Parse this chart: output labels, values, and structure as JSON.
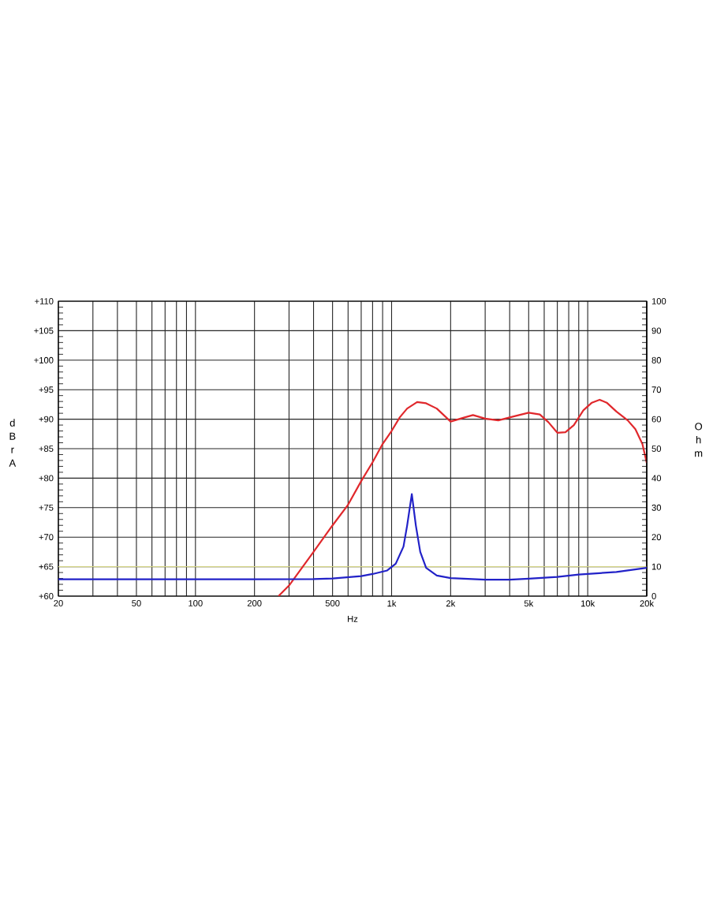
{
  "chart_data": {
    "type": "line",
    "xlabel": "Hz",
    "ylabel": "dBrA",
    "y2label": "Ohm",
    "log": "x",
    "grid": true,
    "xlim": [
      20,
      20000
    ],
    "xticks": [
      20,
      {
        "value": 30,
        "label": null
      },
      {
        "value": 40,
        "label": null
      },
      50,
      {
        "value": 60,
        "label": null
      },
      {
        "value": 70,
        "label": null
      },
      {
        "value": 80,
        "label": null
      },
      {
        "value": 90,
        "label": null
      },
      100,
      200,
      {
        "value": 300,
        "label": null
      },
      {
        "value": 400,
        "label": null
      },
      500,
      {
        "value": 600,
        "label": null
      },
      {
        "value": 700,
        "label": null
      },
      {
        "value": 800,
        "label": null
      },
      {
        "value": 900,
        "label": null
      },
      {
        "value": 1000,
        "label": "1k"
      },
      {
        "value": 2000,
        "label": "2k"
      },
      {
        "value": 3000,
        "label": null
      },
      {
        "value": 4000,
        "label": null
      },
      {
        "value": 5000,
        "label": "5k"
      },
      {
        "value": 6000,
        "label": null
      },
      {
        "value": 7000,
        "label": null
      },
      {
        "value": 8000,
        "label": null
      },
      {
        "value": 9000,
        "label": null
      },
      {
        "value": 10000,
        "label": "10k"
      },
      {
        "value": 20000,
        "label": "20k"
      }
    ],
    "ylim": [
      60,
      110
    ],
    "yticks": [
      {
        "value": 60,
        "label": "+60"
      },
      {
        "value": 65,
        "label": "+65"
      },
      {
        "value": 70,
        "label": "+70"
      },
      {
        "value": 75,
        "label": "+75"
      },
      {
        "value": 80,
        "label": "+80"
      },
      {
        "value": 85,
        "label": "+85"
      },
      {
        "value": 90,
        "label": "+90"
      },
      {
        "value": 95,
        "label": "+95"
      },
      {
        "value": 100,
        "label": "+100"
      },
      {
        "value": 105,
        "label": "+105"
      },
      {
        "value": 110,
        "label": "+110"
      }
    ],
    "y2lim": [
      0,
      100
    ],
    "y2ticks": [
      0,
      10,
      20,
      30,
      40,
      50,
      60,
      70,
      80,
      90,
      100
    ],
    "ref_lines": [
      {
        "axis": "y",
        "value": 65,
        "color": "#d6d68a"
      }
    ],
    "series": [
      {
        "color": "#e0282c",
        "x": [
          265,
          300,
          400,
          500,
          600,
          700,
          800,
          900,
          1000,
          1100,
          1200,
          1350,
          1500,
          1700,
          2000,
          2300,
          2600,
          3000,
          3500,
          4000,
          5000,
          5700,
          6300,
          7000,
          7700,
          8500,
          9500,
          10500,
          11500,
          12500,
          14000,
          16000,
          17500,
          19000,
          20000
        ],
        "values": [
          60,
          61.8,
          67.5,
          72,
          75.5,
          79.5,
          82.7,
          85.8,
          88,
          90.3,
          91.8,
          92.9,
          92.7,
          91.8,
          89.6,
          90.2,
          90.7,
          90.1,
          89.8,
          90.3,
          91.1,
          90.8,
          89.5,
          87.7,
          87.8,
          89,
          91.5,
          92.8,
          93.3,
          92.8,
          91.3,
          89.8,
          88.3,
          85.8,
          82.6
        ]
      },
      {
        "color": "#2222c8",
        "axis": "y2",
        "x": [
          20,
          100,
          200,
          400,
          500,
          700,
          800,
          950,
          1050,
          1150,
          1200,
          1268,
          1330,
          1400,
          1500,
          1700,
          2000,
          3000,
          4000,
          5000,
          7000,
          9000,
          14000,
          20000
        ],
        "values": [
          5.7,
          5.7,
          5.7,
          5.8,
          6,
          6.8,
          7.5,
          8.7,
          11,
          16.8,
          23.9,
          34.6,
          23.9,
          15,
          9.6,
          7,
          6.1,
          5.6,
          5.6,
          5.9,
          6.5,
          7.3,
          8.2,
          9.6
        ]
      }
    ]
  }
}
